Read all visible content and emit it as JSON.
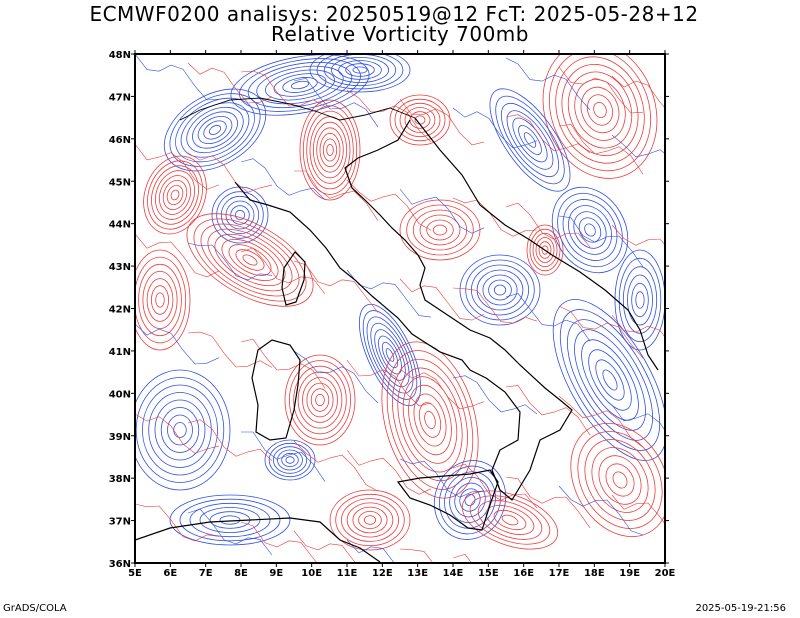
{
  "title_line1": "ECMWF0200 analisys: 20250519@12 FcT: 2025-05-28+12",
  "title_line2": "Relative Vorticity 700mb",
  "footer_left": "GrADS/COLA",
  "footer_right": "2025-05-19-21:56",
  "lat_labels": [
    "48N",
    "47N",
    "46N",
    "45N",
    "44N",
    "43N",
    "42N",
    "41N",
    "40N",
    "39N",
    "38N",
    "37N",
    "36N"
  ],
  "lon_labels": [
    "5E",
    "6E",
    "7E",
    "8E",
    "9E",
    "10E",
    "11E",
    "12E",
    "13E",
    "14E",
    "15E",
    "16E",
    "17E",
    "18E",
    "19E",
    "20E"
  ],
  "colors": {
    "positive": "#ee3b3b",
    "negative": "#2f4fe6",
    "coast": "#000000"
  }
}
